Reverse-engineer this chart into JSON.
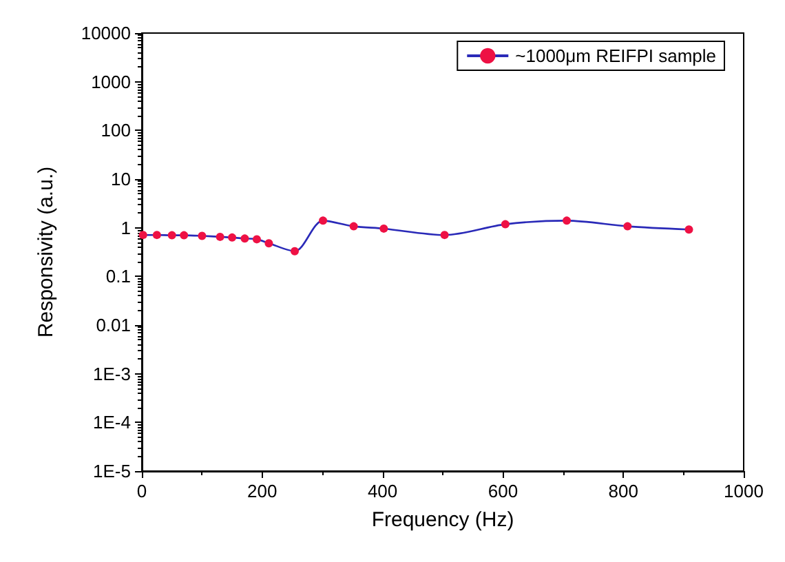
{
  "chart_data": {
    "type": "line",
    "xlabel": "Frequency (Hz)",
    "ylabel": "Responsivity (a.u.)",
    "x": [
      2,
      25,
      50,
      70,
      100,
      130,
      150,
      171,
      191,
      211,
      254,
      301,
      352,
      402,
      503,
      604,
      706,
      807,
      909
    ],
    "series": [
      {
        "name": "~1000μm REIFPI sample",
        "color": "#ee1144",
        "values": [
          0.71,
          0.71,
          0.7,
          0.7,
          0.68,
          0.65,
          0.63,
          0.6,
          0.58,
          0.48,
          0.33,
          1.4,
          1.07,
          0.96,
          0.71,
          1.18,
          1.4,
          1.07,
          0.92
        ]
      }
    ],
    "xlim": [
      0,
      1000
    ],
    "xticks": [
      0,
      200,
      400,
      600,
      800,
      1000
    ],
    "ylim": [
      1e-05,
      10000
    ],
    "yticks": [
      {
        "value": 1e-05,
        "label": "1E-5"
      },
      {
        "value": 0.0001,
        "label": "1E-4"
      },
      {
        "value": 0.001,
        "label": "1E-3"
      },
      0.01,
      0.1,
      1,
      10,
      100,
      1000,
      10000
    ],
    "log": "y",
    "legend": "top right",
    "marker": "circle",
    "line_style": "solid",
    "grid": false
  }
}
